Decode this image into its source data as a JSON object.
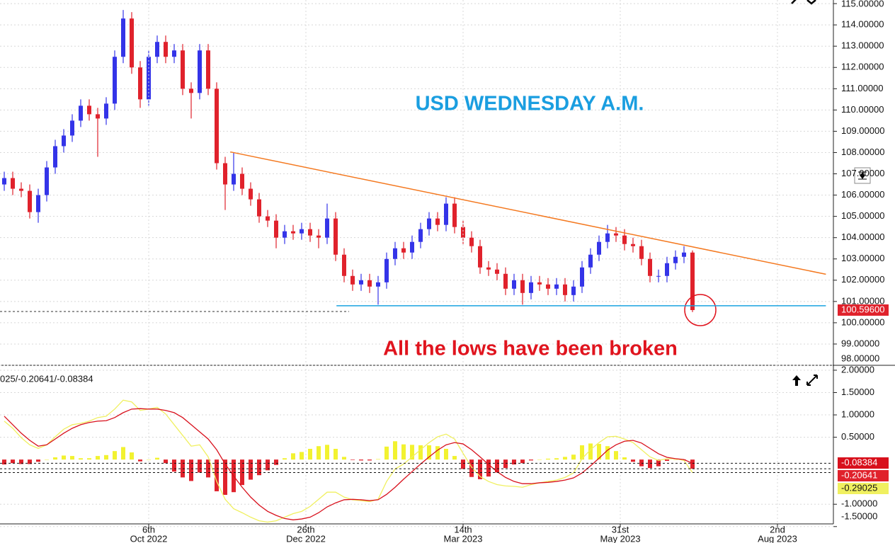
{
  "chart_data": [
    {
      "type": "candlestick",
      "annotations": [
        "USD WEDNESDAY A.M.",
        "All the lows have been broken"
      ],
      "up_color": "#3434e8",
      "down_color": "#e0222c",
      "open": [
        106.5,
        106.8,
        106.3,
        106.2,
        105.2,
        106.0,
        107.3,
        108.3,
        108.8,
        109.5,
        110.2,
        109.8,
        109.6,
        110.3,
        112.5,
        114.3,
        112.0,
        110.5,
        112.5,
        113.2,
        112.5,
        112.8,
        111.0,
        110.8,
        112.8,
        111.0,
        107.5,
        106.5,
        107.0,
        106.3,
        105.8,
        105.0,
        104.8,
        104.0,
        104.3,
        104.2,
        104.4,
        104.1,
        104.0,
        104.9,
        103.2,
        102.2,
        101.8,
        102.0,
        101.7,
        101.9,
        103.0,
        103.5,
        103.3,
        103.8,
        104.4,
        104.9,
        104.6,
        105.6,
        104.5,
        104.0,
        103.6,
        102.6,
        102.5,
        102.3,
        101.6,
        102.0,
        101.4,
        101.9,
        101.8,
        101.6,
        101.8,
        101.3,
        101.7,
        102.6,
        103.2,
        103.8,
        104.2,
        104.1,
        103.7,
        103.6,
        103.0,
        102.2,
        102.2,
        102.8,
        103.1,
        103.3
      ],
      "high": [
        107.1,
        107.1,
        106.6,
        106.5,
        106.3,
        107.6,
        108.6,
        109.1,
        109.8,
        110.5,
        110.5,
        110.1,
        110.6,
        112.8,
        114.7,
        114.6,
        112.3,
        112.8,
        113.5,
        113.5,
        113.1,
        113.1,
        111.3,
        113.1,
        113.1,
        111.3,
        107.8,
        108.0,
        107.3,
        106.6,
        106.1,
        105.3,
        105.1,
        104.6,
        104.6,
        104.7,
        104.7,
        104.4,
        105.6,
        105.2,
        103.5,
        102.5,
        102.3,
        102.3,
        102.2,
        103.3,
        103.8,
        103.8,
        104.1,
        104.7,
        105.2,
        105.2,
        105.9,
        105.9,
        104.8,
        104.3,
        103.9,
        102.9,
        102.8,
        102.6,
        102.3,
        102.3,
        102.2,
        102.2,
        102.1,
        102.1,
        102.1,
        102.0,
        102.9,
        103.5,
        104.1,
        104.6,
        104.5,
        104.4,
        104.0,
        103.9,
        103.3,
        102.5,
        103.1,
        103.4,
        103.6,
        103.4
      ],
      "low": [
        106.2,
        106.0,
        105.9,
        104.9,
        104.7,
        105.7,
        107.0,
        108.0,
        108.5,
        109.2,
        109.5,
        107.8,
        109.3,
        110.0,
        112.2,
        111.7,
        110.1,
        110.2,
        112.2,
        112.2,
        112.2,
        110.7,
        109.6,
        110.5,
        110.7,
        107.2,
        105.3,
        106.2,
        106.0,
        105.5,
        104.7,
        104.5,
        103.5,
        103.7,
        103.9,
        103.9,
        103.8,
        103.5,
        103.7,
        102.9,
        101.9,
        101.5,
        101.5,
        101.4,
        100.85,
        101.6,
        102.7,
        103.0,
        103.0,
        103.5,
        104.1,
        104.3,
        104.3,
        104.2,
        103.7,
        103.3,
        102.3,
        102.2,
        102.0,
        101.3,
        101.3,
        100.85,
        101.1,
        101.5,
        101.3,
        101.3,
        101.0,
        101.0,
        101.4,
        102.3,
        102.9,
        103.5,
        103.8,
        103.4,
        103.3,
        102.7,
        101.9,
        101.9,
        101.9,
        102.5,
        102.8,
        100.5
      ],
      "close": [
        106.8,
        106.3,
        106.2,
        105.2,
        106.0,
        107.3,
        108.3,
        108.8,
        109.5,
        110.2,
        109.8,
        109.6,
        110.3,
        112.5,
        114.3,
        112.0,
        110.5,
        112.5,
        113.2,
        112.5,
        112.8,
        111.0,
        110.8,
        112.8,
        111.0,
        107.5,
        106.5,
        107.0,
        106.3,
        105.8,
        105.0,
        104.8,
        104.0,
        104.3,
        104.2,
        104.4,
        104.1,
        104.0,
        104.9,
        103.2,
        102.2,
        101.8,
        102.0,
        101.7,
        101.9,
        103.0,
        103.5,
        103.3,
        103.8,
        104.4,
        104.9,
        104.6,
        105.6,
        104.5,
        104.0,
        103.6,
        102.6,
        102.5,
        102.3,
        101.6,
        102.0,
        101.4,
        101.9,
        101.8,
        101.6,
        101.8,
        101.3,
        101.7,
        102.6,
        103.2,
        103.8,
        104.2,
        104.1,
        103.7,
        103.6,
        103.0,
        102.2,
        102.2,
        102.8,
        103.1,
        103.3,
        100.596
      ],
      "last_price": {
        "value": 100.596,
        "label": "100.59600"
      },
      "lines": [
        {
          "color": "#f47920",
          "x": [
            27.1,
            97.2
          ],
          "y": [
            108.03,
            102.28
          ]
        },
        {
          "color": "#1aa3e0",
          "x": [
            39.6,
            97.2
          ],
          "y": [
            100.8,
            100.8
          ]
        }
      ],
      "xlim": [
        0,
        98
      ],
      "ylim": [
        98,
        115.17
      ],
      "yticks": [
        {
          "value": 115,
          "label": "115.00000"
        },
        {
          "value": 114,
          "label": "114.00000"
        },
        {
          "value": 113,
          "label": "113.00000"
        },
        {
          "value": 112,
          "label": "112.00000"
        },
        {
          "value": 111,
          "label": "111.00000"
        },
        {
          "value": 110,
          "label": "110.00000"
        },
        {
          "value": 109,
          "label": "109.00000"
        },
        {
          "value": 108,
          "label": "108.00000"
        },
        {
          "value": 107,
          "label": "107.00000"
        },
        {
          "value": 106,
          "label": "106.00000"
        },
        {
          "value": 105,
          "label": "105.00000"
        },
        {
          "value": 104,
          "label": "104.00000"
        },
        {
          "value": 103,
          "label": "103.00000"
        },
        {
          "value": 102,
          "label": "102.00000"
        },
        {
          "value": 101,
          "label": "101.00000"
        },
        {
          "value": 100,
          "label": "100.00000"
        },
        {
          "value": 99,
          "label": "99.00000"
        },
        {
          "value": 98,
          "label": "98.00000"
        }
      ],
      "grid": true
    },
    {
      "type": "macd",
      "header": "025/-0.20641/-0.08384",
      "xlim": [
        0,
        98
      ],
      "ylim": [
        -1.44,
        2.11
      ],
      "yticks": [
        {
          "value": 2,
          "label": "2.00000"
        },
        {
          "value": 1.5,
          "label": "1.50000"
        },
        {
          "value": 1,
          "label": "1.00000"
        },
        {
          "value": 0.5,
          "label": "0.50000"
        },
        {
          "value": -1,
          "label": "-1.00000"
        },
        {
          "value": -1.5,
          "label": "-1.50000"
        }
      ],
      "xticks": [
        {
          "value": 17.5,
          "label": [
            "6th",
            "Oct 2022"
          ]
        },
        {
          "value": 36,
          "label": [
            "26th",
            "Dec 2022"
          ]
        },
        {
          "value": 54.5,
          "label": [
            "14th",
            "Mar 2023"
          ]
        },
        {
          "value": 73,
          "label": [
            "31st",
            "May 2023"
          ]
        },
        {
          "value": 91.5,
          "label": [
            "2nd",
            "Aug 2023"
          ]
        }
      ],
      "grid": true,
      "series": [
        {
          "kind": "histogram",
          "color": "#f2f230",
          "negative_color": "#e0222c",
          "last_label": "-0.20641",
          "values": [
            -0.11,
            -0.08,
            -0.1,
            -0.1,
            -0.05,
            0,
            0.05,
            0.09,
            0.08,
            0.03,
            0.03,
            0.08,
            0.1,
            0.19,
            0.28,
            0.16,
            -0.04,
            0,
            0.04,
            -0.08,
            -0.27,
            -0.4,
            -0.48,
            -0.29,
            -0.4,
            -0.71,
            -0.79,
            -0.73,
            -0.57,
            -0.45,
            -0.35,
            -0.24,
            -0.12,
            0.03,
            0.14,
            0.17,
            0.24,
            0.3,
            0.33,
            0.24,
            0.06,
            -0.01,
            -0.02,
            -0.02,
            0.01,
            0.29,
            0.41,
            0.34,
            0.33,
            0.32,
            0.32,
            0.3,
            0.24,
            0.08,
            -0.21,
            -0.39,
            -0.44,
            -0.38,
            -0.29,
            -0.19,
            -0.11,
            -0.08,
            -0.02,
            0,
            0.02,
            0.03,
            0.06,
            0.11,
            0.32,
            0.36,
            0.35,
            0.3,
            0.19,
            0.05,
            -0.05,
            -0.15,
            -0.19,
            -0.15,
            -0.03,
            0,
            -0.02,
            -0.20641
          ]
        },
        {
          "kind": "line",
          "color": "#f0f060",
          "last_label": "-0.29025",
          "values": [
            0.86,
            0.7,
            0.49,
            0.33,
            0.25,
            0.33,
            0.51,
            0.68,
            0.78,
            0.81,
            0.86,
            0.94,
            0.97,
            1.13,
            1.33,
            1.29,
            1.1,
            1.13,
            1.17,
            1.02,
            0.78,
            0.54,
            0.3,
            0.33,
            0.06,
            -0.49,
            -0.89,
            -1.1,
            -1.19,
            -1.29,
            -1.37,
            -1.4,
            -1.37,
            -1.29,
            -1.21,
            -1.16,
            -1.05,
            -0.89,
            -0.73,
            -0.73,
            -0.84,
            -0.9,
            -0.92,
            -0.94,
            -0.89,
            -0.49,
            -0.21,
            -0.1,
            0.06,
            0.22,
            0.38,
            0.51,
            0.57,
            0.46,
            0.14,
            -0.17,
            -0.38,
            -0.49,
            -0.56,
            -0.59,
            -0.6,
            -0.62,
            -0.56,
            -0.52,
            -0.49,
            -0.46,
            -0.4,
            -0.3,
            0.02,
            0.22,
            0.38,
            0.51,
            0.52,
            0.46,
            0.38,
            0.22,
            0.06,
            -0.02,
            0.02,
            0.02,
            -0.02,
            -0.29025
          ]
        },
        {
          "kind": "line",
          "color": "#d8101c",
          "last_label": "-0.08384",
          "values": [
            0.97,
            0.78,
            0.59,
            0.43,
            0.3,
            0.33,
            0.46,
            0.59,
            0.7,
            0.78,
            0.83,
            0.86,
            0.87,
            0.94,
            1.05,
            1.13,
            1.14,
            1.13,
            1.13,
            1.1,
            1.05,
            0.94,
            0.78,
            0.62,
            0.46,
            0.22,
            -0.1,
            -0.37,
            -0.62,
            -0.84,
            -1.02,
            -1.16,
            -1.25,
            -1.32,
            -1.35,
            -1.33,
            -1.29,
            -1.19,
            -1.06,
            -0.97,
            -0.9,
            -0.89,
            -0.9,
            -0.92,
            -0.9,
            -0.78,
            -0.62,
            -0.44,
            -0.27,
            -0.1,
            0.06,
            0.21,
            0.33,
            0.38,
            0.35,
            0.22,
            0.06,
            -0.11,
            -0.27,
            -0.4,
            -0.49,
            -0.54,
            -0.54,
            -0.52,
            -0.51,
            -0.49,
            -0.46,
            -0.41,
            -0.3,
            -0.14,
            0.03,
            0.21,
            0.33,
            0.41,
            0.43,
            0.37,
            0.25,
            0.13,
            0.05,
            0.02,
            0,
            -0.08384
          ]
        }
      ]
    }
  ]
}
